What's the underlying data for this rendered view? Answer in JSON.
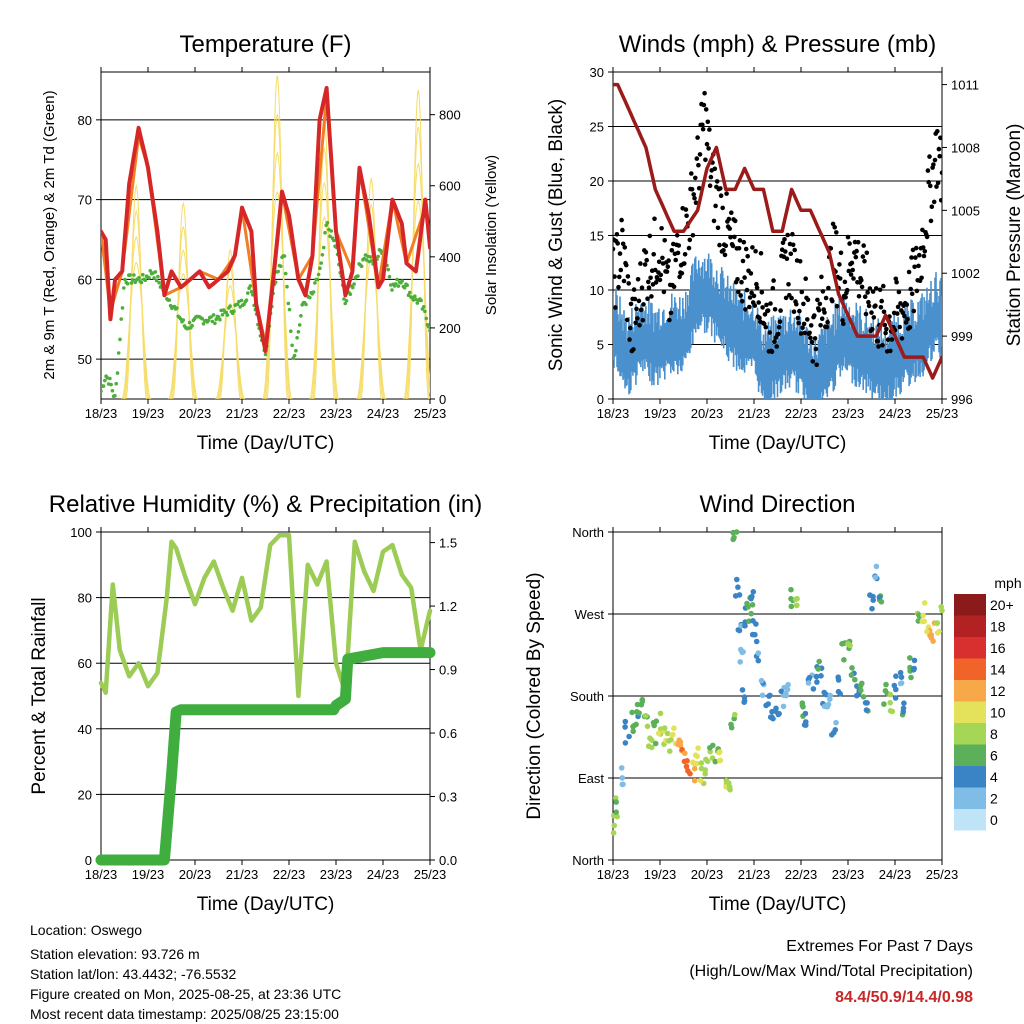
{
  "info": {
    "location": "Location: Oswego",
    "elevation": "Station elevation: 93.726 m",
    "latlon": "Station lat/lon: 43.4432; -76.5532",
    "created": "Figure created on Mon, 2025-08-25, at 23:36 UTC",
    "recent": "Most recent data timestamp: 2025/08/25 23:15:00"
  },
  "extremes": {
    "title": "Extremes For Past 7 Days",
    "subtitle": "(High/Low/Max Wind/Total Precipitation)",
    "values": "84.4/50.9/14.4/0.98"
  },
  "colors": {
    "temp2m": "#d62728",
    "temp9m": "#f07f23",
    "dewpoint": "#4daf3a",
    "solar": "#f6dd6a",
    "wind": "#4a90cc",
    "gust": "#000000",
    "pressure": "#9b1a1a",
    "rh": "#9ccc55",
    "precip": "#3fae3f"
  },
  "chart_data": [
    {
      "type": "line",
      "title": "Temperature (F)",
      "xlabel": "Time (Day/UTC)",
      "ylabel": "2m & 9m T (Red, Orange) & 2m Td (Green)",
      "y2label": "Solar Insolation (Yellow)",
      "x_ticks": [
        "18/23",
        "19/23",
        "20/23",
        "21/23",
        "22/23",
        "23/23",
        "24/23",
        "25/23"
      ],
      "xlim": [
        0,
        7
      ],
      "ylim": [
        45,
        86
      ],
      "y_ticks": [
        50,
        60,
        70,
        80
      ],
      "y2lim": [
        0,
        920
      ],
      "y2_ticks": [
        0,
        200,
        400,
        600,
        800
      ],
      "grid": "horizontal",
      "series": [
        {
          "key": "temp2m",
          "axis": "left",
          "style": "thick",
          "x": [
            0,
            0.1,
            0.2,
            0.3,
            0.45,
            0.6,
            0.8,
            1.0,
            1.2,
            1.35,
            1.5,
            1.7,
            1.9,
            2.1,
            2.3,
            2.5,
            2.7,
            2.85,
            3.0,
            3.2,
            3.3,
            3.5,
            3.7,
            3.85,
            4.0,
            4.2,
            4.35,
            4.5,
            4.65,
            4.8,
            5.0,
            5.2,
            5.35,
            5.5,
            5.7,
            5.9,
            6.0,
            6.2,
            6.4,
            6.5,
            6.7,
            6.9,
            7.0
          ],
          "y": [
            66,
            65,
            55,
            60,
            61,
            72,
            79,
            74,
            66,
            58,
            61,
            59,
            60,
            61,
            59,
            60,
            61,
            63,
            69,
            66,
            57,
            51,
            62,
            71,
            68,
            60,
            58,
            63,
            80,
            84,
            66,
            58,
            61,
            74,
            68,
            59,
            60,
            70,
            67,
            62,
            61,
            70,
            64
          ]
        },
        {
          "key": "temp9m",
          "axis": "left",
          "style": "thin",
          "x": [
            0,
            0.2,
            0.45,
            0.8,
            1.0,
            1.35,
            1.7,
            2.1,
            2.5,
            2.85,
            3.0,
            3.3,
            3.5,
            3.85,
            4.2,
            4.5,
            4.8,
            5.0,
            5.35,
            5.5,
            5.9,
            6.2,
            6.5,
            6.9,
            7.0
          ],
          "y": [
            66,
            56,
            61,
            78,
            74,
            58,
            59,
            61,
            60,
            63,
            69,
            57,
            52,
            71,
            60,
            63,
            83,
            66,
            61,
            74,
            59,
            70,
            62,
            69,
            65
          ]
        },
        {
          "key": "dewpoint",
          "axis": "left",
          "style": "dots",
          "x": [
            0,
            0.1,
            0.2,
            0.3,
            0.5,
            0.7,
            0.9,
            1.1,
            1.3,
            1.5,
            1.8,
            2.1,
            2.4,
            2.7,
            3.0,
            3.2,
            3.4,
            3.5,
            3.7,
            3.9,
            4.1,
            4.3,
            4.5,
            4.7,
            4.8,
            5.0,
            5.2,
            5.4,
            5.6,
            5.8,
            6.0,
            6.2,
            6.4,
            6.6,
            6.8,
            7.0
          ],
          "y": [
            46,
            48,
            47,
            45,
            60,
            60,
            60,
            61,
            59,
            57,
            54,
            55,
            55,
            56,
            57,
            59,
            53,
            51,
            60,
            63,
            50,
            57,
            58,
            62,
            67,
            64,
            57,
            60,
            63,
            62,
            64,
            59,
            60,
            58,
            57,
            54
          ]
        },
        {
          "key": "solar",
          "axis": "right",
          "style": "peaks",
          "x": [
            0.75,
            1.75,
            2.75,
            3.75,
            4.75,
            5.75,
            6.75
          ],
          "y": [
            600,
            550,
            420,
            910,
            800,
            620,
            870
          ]
        }
      ]
    },
    {
      "type": "line",
      "title": "Winds (mph) & Pressure (mb)",
      "xlabel": "Time (Day/UTC)",
      "ylabel": "Sonic Wind & Gust (Blue, Black)",
      "y2label": "Station Pressure (Maroon)",
      "x_ticks": [
        "18/23",
        "19/23",
        "20/23",
        "21/23",
        "22/23",
        "23/23",
        "24/23",
        "25/23"
      ],
      "xlim": [
        0,
        7
      ],
      "ylim": [
        0,
        30
      ],
      "y_ticks": [
        0,
        5,
        10,
        15,
        20,
        25,
        30
      ],
      "y2lim": [
        996,
        1011.6
      ],
      "y2_ticks": [
        996,
        999,
        1002,
        1005,
        1008,
        1011
      ],
      "grid": "horizontal",
      "series": [
        {
          "key": "wind",
          "axis": "left",
          "style": "band",
          "x": [
            0,
            0.3,
            0.6,
            0.9,
            1.2,
            1.5,
            1.8,
            2.0,
            2.2,
            2.5,
            2.8,
            3.0,
            3.2,
            3.5,
            3.8,
            4.0,
            4.3,
            4.6,
            4.9,
            5.2,
            5.5,
            5.8,
            6.0,
            6.3,
            6.6,
            6.9,
            7.0
          ],
          "y": [
            7,
            4,
            6,
            5,
            6,
            6,
            10,
            10,
            9,
            7,
            6,
            6,
            3,
            4,
            5,
            4,
            2,
            4,
            6,
            5,
            4,
            3,
            4,
            5,
            6,
            8,
            7
          ]
        },
        {
          "key": "gust",
          "axis": "left",
          "style": "dots",
          "x": [
            0,
            0.2,
            0.4,
            0.7,
            1.0,
            1.2,
            1.4,
            1.6,
            1.8,
            1.95,
            2.1,
            2.3,
            2.6,
            2.9,
            3.1,
            3.3,
            3.5,
            3.7,
            3.9,
            4.1,
            4.3,
            4.5,
            4.7,
            4.9,
            5.1,
            5.3,
            5.5,
            5.7,
            5.9,
            6.1,
            6.3,
            6.5,
            6.7,
            6.9,
            7.0
          ],
          "y": [
            11,
            14,
            6,
            12,
            14,
            9,
            14,
            16,
            21,
            26,
            20,
            17,
            13,
            11,
            11,
            7,
            8,
            13,
            11,
            8,
            6,
            9,
            13,
            10,
            14,
            11,
            9,
            7,
            7,
            8,
            9,
            12,
            18,
            23,
            20
          ]
        },
        {
          "key": "pressure",
          "axis": "right",
          "style": "thick",
          "x": [
            0,
            0.1,
            0.3,
            0.5,
            0.7,
            0.9,
            1.1,
            1.3,
            1.5,
            1.8,
            2.0,
            2.2,
            2.4,
            2.6,
            2.8,
            3.0,
            3.2,
            3.4,
            3.6,
            3.8,
            4.0,
            4.2,
            4.4,
            4.6,
            4.8,
            5.0,
            5.2,
            5.4,
            5.6,
            5.8,
            6.0,
            6.2,
            6.4,
            6.6,
            6.8,
            7.0
          ],
          "y": [
            1011,
            1011,
            1010,
            1009,
            1008,
            1006,
            1005,
            1004,
            1004,
            1005,
            1007,
            1008,
            1006,
            1006,
            1007,
            1006,
            1006,
            1004,
            1004,
            1006,
            1005,
            1005,
            1004,
            1003,
            1001,
            1000,
            999,
            999,
            999,
            1000,
            999,
            998,
            998,
            998,
            997,
            998
          ]
        }
      ]
    },
    {
      "type": "line",
      "title": "Relative Humidity (%) & Precipitation (in)",
      "xlabel": "Time (Day/UTC)",
      "ylabel": "Percent & Total Rainfall",
      "x_ticks": [
        "18/23",
        "19/23",
        "20/23",
        "21/23",
        "22/23",
        "23/23",
        "24/23",
        "25/23"
      ],
      "xlim": [
        0,
        7
      ],
      "ylim": [
        0,
        100
      ],
      "y_ticks": [
        0,
        20,
        40,
        60,
        80,
        100
      ],
      "y2lim": [
        0,
        1.55
      ],
      "y2_ticks": [
        "0.0",
        "0.3",
        "0.6",
        "0.9",
        "1.2",
        "1.5"
      ],
      "grid": "horizontal",
      "series": [
        {
          "key": "rh",
          "axis": "left",
          "style": "thick",
          "x": [
            0,
            0.1,
            0.25,
            0.4,
            0.6,
            0.8,
            1.0,
            1.2,
            1.4,
            1.5,
            1.6,
            1.8,
            2.0,
            2.2,
            2.4,
            2.6,
            2.8,
            3.0,
            3.2,
            3.4,
            3.6,
            3.8,
            4.0,
            4.2,
            4.4,
            4.6,
            4.8,
            5.0,
            5.2,
            5.4,
            5.6,
            5.8,
            6.0,
            6.2,
            6.4,
            6.6,
            6.8,
            7.0
          ],
          "y": [
            54,
            51,
            84,
            64,
            56,
            60,
            53,
            57,
            80,
            97,
            95,
            86,
            78,
            86,
            91,
            83,
            76,
            86,
            73,
            77,
            96,
            99,
            99,
            50,
            90,
            84,
            91,
            60,
            51,
            97,
            88,
            82,
            94,
            96,
            87,
            83,
            64,
            76
          ]
        },
        {
          "key": "precip",
          "axis": "right",
          "style": "thick",
          "x": [
            0,
            1.35,
            1.5,
            1.6,
            1.7,
            2.0,
            3.0,
            4.0,
            4.95,
            5.0,
            5.2,
            5.25,
            5.5,
            6.0,
            7.0
          ],
          "y": [
            0,
            0,
            0.4,
            0.7,
            0.71,
            0.71,
            0.71,
            0.71,
            0.71,
            0.73,
            0.76,
            0.95,
            0.96,
            0.98,
            0.98
          ]
        }
      ]
    },
    {
      "type": "scatter",
      "title": "Wind Direction",
      "xlabel": "Time (Day/UTC)",
      "ylabel": "Direction (Colored By Speed)",
      "x_ticks": [
        "18/23",
        "19/23",
        "20/23",
        "21/23",
        "22/23",
        "23/23",
        "24/23",
        "25/23"
      ],
      "xlim": [
        0,
        7
      ],
      "ylim": [
        0,
        360
      ],
      "y_ticks": [
        {
          "v": 0,
          "label": "North"
        },
        {
          "v": 90,
          "label": "East"
        },
        {
          "v": 180,
          "label": "South"
        },
        {
          "v": 270,
          "label": "West"
        },
        {
          "v": 360,
          "label": "North"
        }
      ],
      "grid": "horizontal",
      "legend": {
        "title": "mph",
        "labels": [
          "20+",
          "18",
          "16",
          "14",
          "12",
          "10",
          "8",
          "6",
          "4",
          "2",
          "0"
        ],
        "colors": [
          "#8b1a1a",
          "#b22222",
          "#d7302f",
          "#f0642a",
          "#f7a94a",
          "#e4e25a",
          "#a6d655",
          "#5cb05a",
          "#3a83c4",
          "#80bde6",
          "#bfe3f7"
        ],
        "placement": "right"
      },
      "points": {
        "t": [
          0,
          0.1,
          0.2,
          0.3,
          0.4,
          0.5,
          0.6,
          0.7,
          0.8,
          0.9,
          1.0,
          1.1,
          1.2,
          1.3,
          1.4,
          1.5,
          1.6,
          1.7,
          1.8,
          1.9,
          2.0,
          2.1,
          2.2,
          2.3,
          2.4,
          2.5,
          2.55,
          2.6,
          2.65,
          2.7,
          2.75,
          2.8,
          2.85,
          2.9,
          2.95,
          3.0,
          3.1,
          3.2,
          3.3,
          3.4,
          3.5,
          3.6,
          3.7,
          3.8,
          3.9,
          4.0,
          4.1,
          4.2,
          4.3,
          4.4,
          4.5,
          4.6,
          4.7,
          4.8,
          4.9,
          5.0,
          5.1,
          5.2,
          5.3,
          5.4,
          5.5,
          5.6,
          5.7,
          5.8,
          5.9,
          6.0,
          6.1,
          6.2,
          6.3,
          6.4,
          6.5,
          6.6,
          6.7,
          6.8,
          6.9,
          7.0
        ],
        "dir": [
          40,
          60,
          90,
          140,
          150,
          160,
          170,
          150,
          130,
          140,
          150,
          135,
          130,
          140,
          120,
          110,
          105,
          100,
          110,
          95,
          100,
          120,
          110,
          110,
          90,
          80,
          150,
          360,
          300,
          250,
          220,
          180,
          270,
          275,
          290,
          250,
          230,
          190,
          175,
          165,
          160,
          180,
          180,
          285,
          290,
          170,
          160,
          190,
          200,
          210,
          180,
          175,
          150,
          190,
          230,
          240,
          200,
          180,
          190,
          170,
          280,
          310,
          290,
          180,
          170,
          190,
          200,
          170,
          210,
          220,
          260,
          270,
          255,
          250,
          260,
          270
        ],
        "spd": [
          8,
          7,
          2,
          4,
          6,
          5,
          6,
          7,
          8,
          6,
          9,
          9,
          8,
          10,
          12,
          13,
          14,
          11,
          10,
          9,
          8,
          7,
          6,
          10,
          9,
          8,
          7,
          6,
          4,
          3,
          2,
          4,
          5,
          6,
          5,
          4,
          3,
          3,
          4,
          3,
          4,
          3,
          2,
          6,
          8,
          6,
          4,
          3,
          4,
          5,
          3,
          2,
          3,
          4,
          6,
          7,
          5,
          4,
          6,
          5,
          4,
          3,
          5,
          6,
          8,
          4,
          3,
          5,
          6,
          4,
          7,
          10,
          11,
          12,
          9,
          8
        ]
      }
    }
  ]
}
